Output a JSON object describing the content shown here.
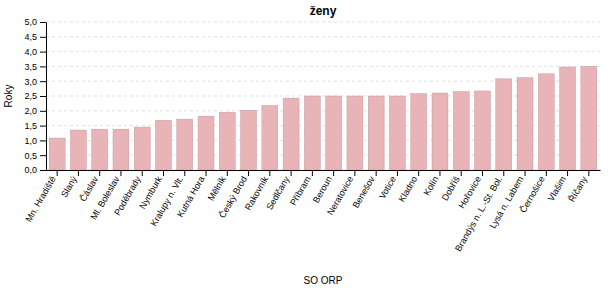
{
  "chart_data": {
    "type": "bar",
    "title": "ženy",
    "xlabel": "SO ORP",
    "ylabel": "Roky",
    "categories": [
      "Mn. Hradiště",
      "Slaný",
      "Čáslav",
      "Ml. Boleslav",
      "Poděbrady",
      "Nymburk",
      "Kralupy n. Vlt.",
      "Kutná Hora",
      "Mělník",
      "Český Brod",
      "Rakovník",
      "Sedlčany",
      "Příbram",
      "Beroun",
      "Neratovice",
      "Benešov",
      "Votice",
      "Kladno",
      "Kolín",
      "Dobříš",
      "Hořovice",
      "Brandýs n. L.-St. Bol.",
      "Lysá n. Labem",
      "Černošice",
      "Vlašim",
      "Říčany"
    ],
    "values": [
      1.08,
      1.35,
      1.38,
      1.38,
      1.45,
      1.68,
      1.72,
      1.82,
      1.95,
      2.02,
      2.18,
      2.43,
      2.5,
      2.5,
      2.5,
      2.5,
      2.5,
      2.58,
      2.6,
      2.65,
      2.67,
      3.08,
      3.12,
      3.25,
      3.48,
      3.5
    ],
    "color": "#e8b4b8",
    "ylim": [
      0,
      5.0
    ],
    "yticks": [
      {
        "value": 0.0,
        "label": "0,0"
      },
      {
        "value": 0.5,
        "label": "0,5"
      },
      {
        "value": 1.0,
        "label": "1,0"
      },
      {
        "value": 1.5,
        "label": "1,5"
      },
      {
        "value": 2.0,
        "label": "2,0"
      },
      {
        "value": 2.5,
        "label": "2,5"
      },
      {
        "value": 3.0,
        "label": "3,0"
      },
      {
        "value": 3.5,
        "label": "3,5"
      },
      {
        "value": 4.0,
        "label": "4,0"
      },
      {
        "value": 4.5,
        "label": "4,5"
      },
      {
        "value": 5.0,
        "label": "5,0"
      }
    ],
    "grid": true
  }
}
